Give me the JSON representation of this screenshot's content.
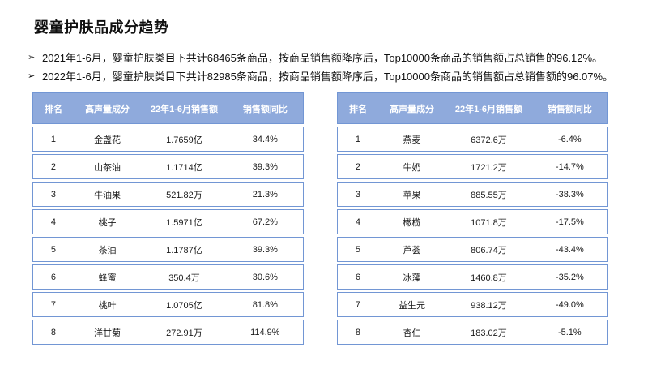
{
  "slide": {
    "title": "婴童护肤品成分趋势",
    "bullet_marker": "➢",
    "bullets": [
      "2021年1-6月，婴童护肤类目下共计68465条商品，按商品销售额降序后，Top10000条商品的销售额占总销售的96.12%。",
      "2022年1-6月，婴童护肤类目下共计82985条商品，按商品销售额降序后，Top10000条商品的销售额占总销售额的96.07%。"
    ]
  },
  "table_left": {
    "headers": [
      "排名",
      "高声量成分",
      "22年1-6月销售额",
      "销售额同比"
    ],
    "rows": [
      [
        "1",
        "金盏花",
        "1.7659亿",
        "34.4%"
      ],
      [
        "2",
        "山茶油",
        "1.1714亿",
        "39.3%"
      ],
      [
        "3",
        "牛油果",
        "521.82万",
        "21.3%"
      ],
      [
        "4",
        "桃子",
        "1.5971亿",
        "67.2%"
      ],
      [
        "5",
        "茶油",
        "1.1787亿",
        "39.3%"
      ],
      [
        "6",
        "蜂蜜",
        "350.4万",
        "30.6%"
      ],
      [
        "7",
        "桃叶",
        "1.0705亿",
        "81.8%"
      ],
      [
        "8",
        "洋甘菊",
        "272.91万",
        "114.9%"
      ]
    ]
  },
  "table_right": {
    "headers": [
      "排名",
      "高声量成分",
      "22年1-6月销售额",
      "销售额同比"
    ],
    "rows": [
      [
        "1",
        "燕麦",
        "6372.6万",
        "-6.4%"
      ],
      [
        "2",
        "牛奶",
        "1721.2万",
        "-14.7%"
      ],
      [
        "3",
        "苹果",
        "885.55万",
        "-38.3%"
      ],
      [
        "4",
        "橄榄",
        "1071.8万",
        "-17.5%"
      ],
      [
        "5",
        "芦荟",
        "806.74万",
        "-43.4%"
      ],
      [
        "6",
        "冰藻",
        "1460.8万",
        "-35.2%"
      ],
      [
        "7",
        "益生元",
        "938.12万",
        "-49.0%"
      ],
      [
        "8",
        "杏仁",
        "183.02万",
        "-5.1%"
      ]
    ]
  },
  "colors": {
    "header_fill": "#8FAADC",
    "border": "#7296D4",
    "header_text": "#FFFFFF",
    "body_text": "#1A1A1A"
  }
}
